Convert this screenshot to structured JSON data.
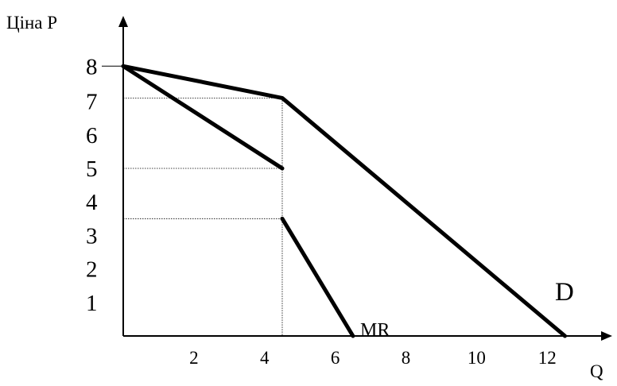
{
  "chart_data": {
    "type": "line",
    "ylabel": "Ціна P",
    "xlabel": "Q",
    "xlim": [
      0,
      13.3
    ],
    "ylim": [
      0,
      8.6
    ],
    "x_ticks": [
      2,
      4,
      6,
      8,
      10,
      12
    ],
    "y_ticks": [
      1,
      2,
      3,
      4,
      5,
      6,
      7,
      8
    ],
    "y_top_tick_value": 8.05,
    "grid": false,
    "series": [
      {
        "name": "D",
        "points": [
          [
            0,
            8.05
          ],
          [
            4.5,
            7.1
          ],
          [
            12.5,
            0
          ]
        ]
      },
      {
        "name": "",
        "points": [
          [
            0,
            8.05
          ],
          [
            4.5,
            5.0
          ]
        ]
      },
      {
        "name": "MR",
        "points": [
          [
            4.5,
            3.5
          ],
          [
            6.5,
            0
          ]
        ]
      }
    ],
    "guides": [
      {
        "x": 4.5,
        "y": 7.1
      },
      {
        "x": 4.5,
        "y": 5.0
      },
      {
        "x": 4.5,
        "y": 3.5
      }
    ]
  }
}
